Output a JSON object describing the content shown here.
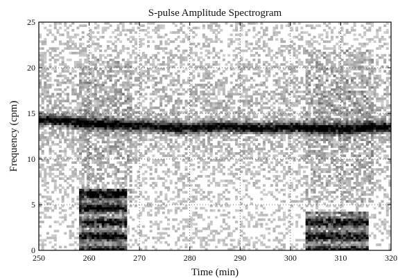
{
  "chart_data": {
    "type": "heatmap",
    "title": "S-pulse Amplitude Spectrogram",
    "xlabel": "Time (min)",
    "ylabel": "Frequency (cpm)",
    "xlim": [
      250,
      320
    ],
    "ylim": [
      0,
      25
    ],
    "xticks": [
      "250",
      "260",
      "270",
      "280",
      "290",
      "300",
      "310",
      "320"
    ],
    "yticks": [
      "0",
      "5",
      "10",
      "15",
      "20",
      "25"
    ],
    "grid": true,
    "colormap": "grayscale (white = low amplitude, black = high amplitude)",
    "dominant_frequency_band": {
      "description": "continuous high-amplitude band",
      "time": [
        250,
        320
      ],
      "frequency_cpm": [
        14.4,
        14.2,
        13.9,
        13.8,
        13.7,
        13.5,
        13.4,
        13.6,
        13.5,
        13.4,
        13.5,
        13.4,
        13.3,
        13.5,
        13.5
      ]
    },
    "low_frequency_bursts": [
      {
        "time_start": 258,
        "time_end": 267,
        "frequency_cpm": [
          0,
          6.5
        ]
      },
      {
        "time_start": 303,
        "time_end": 315,
        "frequency_cpm": [
          0,
          4
        ]
      }
    ]
  }
}
